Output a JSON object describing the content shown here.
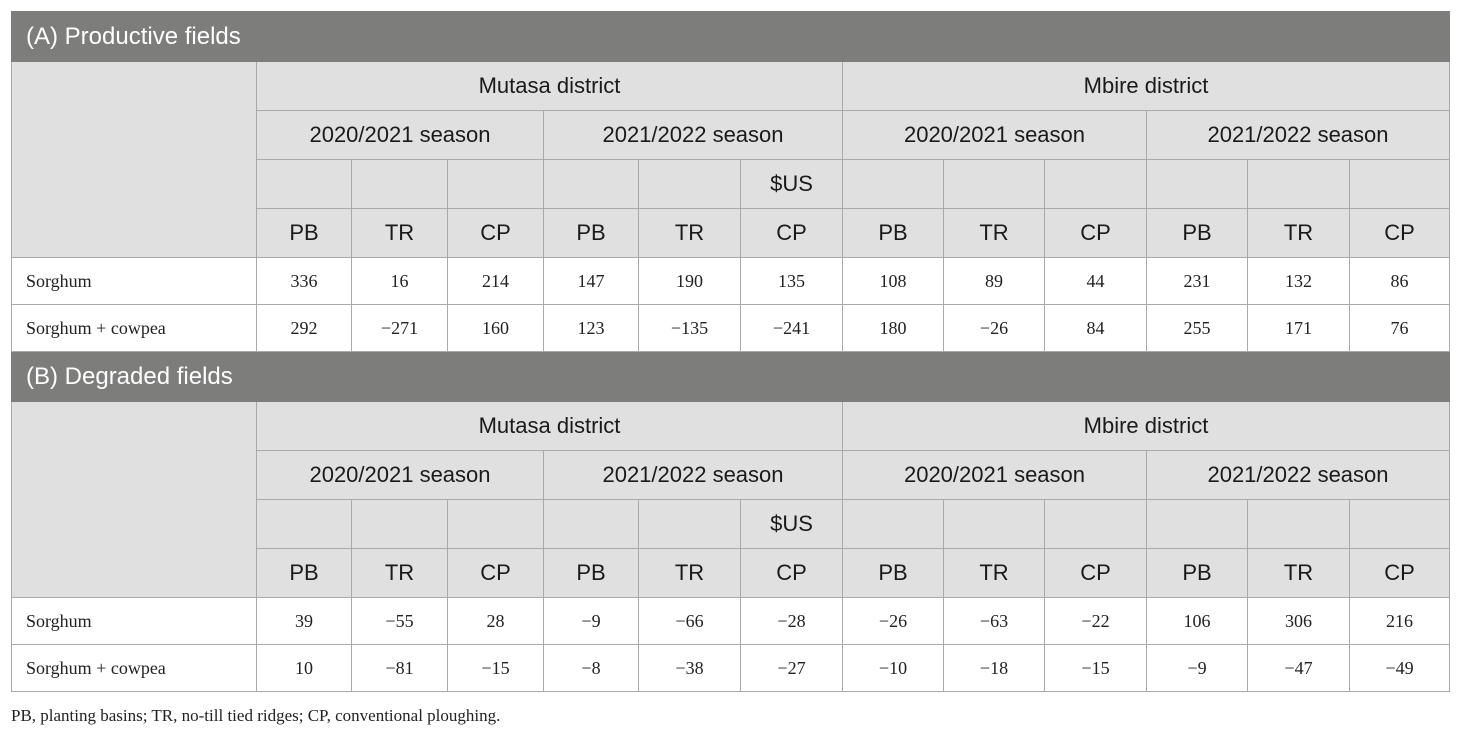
{
  "sections": [
    {
      "title": "(A) Productive fields",
      "districts": [
        "Mutasa district",
        "Mbire district"
      ],
      "seasons": [
        "2020/2021 season",
        "2021/2022 season",
        "2020/2021 season",
        "2021/2022 season"
      ],
      "unit": "$US",
      "columns": [
        "PB",
        "TR",
        "CP",
        "PB",
        "TR",
        "CP",
        "PB",
        "TR",
        "CP",
        "PB",
        "TR",
        "CP"
      ],
      "rows": [
        {
          "label": "Sorghum",
          "values": [
            "336",
            "16",
            "214",
            "147",
            "190",
            "135",
            "108",
            "89",
            "44",
            "231",
            "132",
            "86"
          ]
        },
        {
          "label": "Sorghum + cowpea",
          "values": [
            "292",
            "−271",
            "160",
            "123",
            "−135",
            "−241",
            "180",
            "−26",
            "84",
            "255",
            "171",
            "76"
          ]
        }
      ]
    },
    {
      "title": "(B) Degraded fields",
      "districts": [
        "Mutasa district",
        "Mbire district"
      ],
      "seasons": [
        "2020/2021 season",
        "2021/2022 season",
        "2020/2021 season",
        "2021/2022 season"
      ],
      "unit": "$US",
      "columns": [
        "PB",
        "TR",
        "CP",
        "PB",
        "TR",
        "CP",
        "PB",
        "TR",
        "CP",
        "PB",
        "TR",
        "CP"
      ],
      "rows": [
        {
          "label": "Sorghum",
          "values": [
            "39",
            "−55",
            "28",
            "−9",
            "−66",
            "−28",
            "−26",
            "−63",
            "−22",
            "106",
            "306",
            "216"
          ]
        },
        {
          "label": "Sorghum + cowpea",
          "values": [
            "10",
            "−81",
            "−15",
            "−8",
            "−38",
            "−27",
            "−10",
            "−18",
            "−15",
            "−9",
            "−47",
            "−49"
          ]
        }
      ]
    }
  ],
  "footnote": "PB, planting basins; TR, no-till tied ridges; CP, conventional ploughing."
}
